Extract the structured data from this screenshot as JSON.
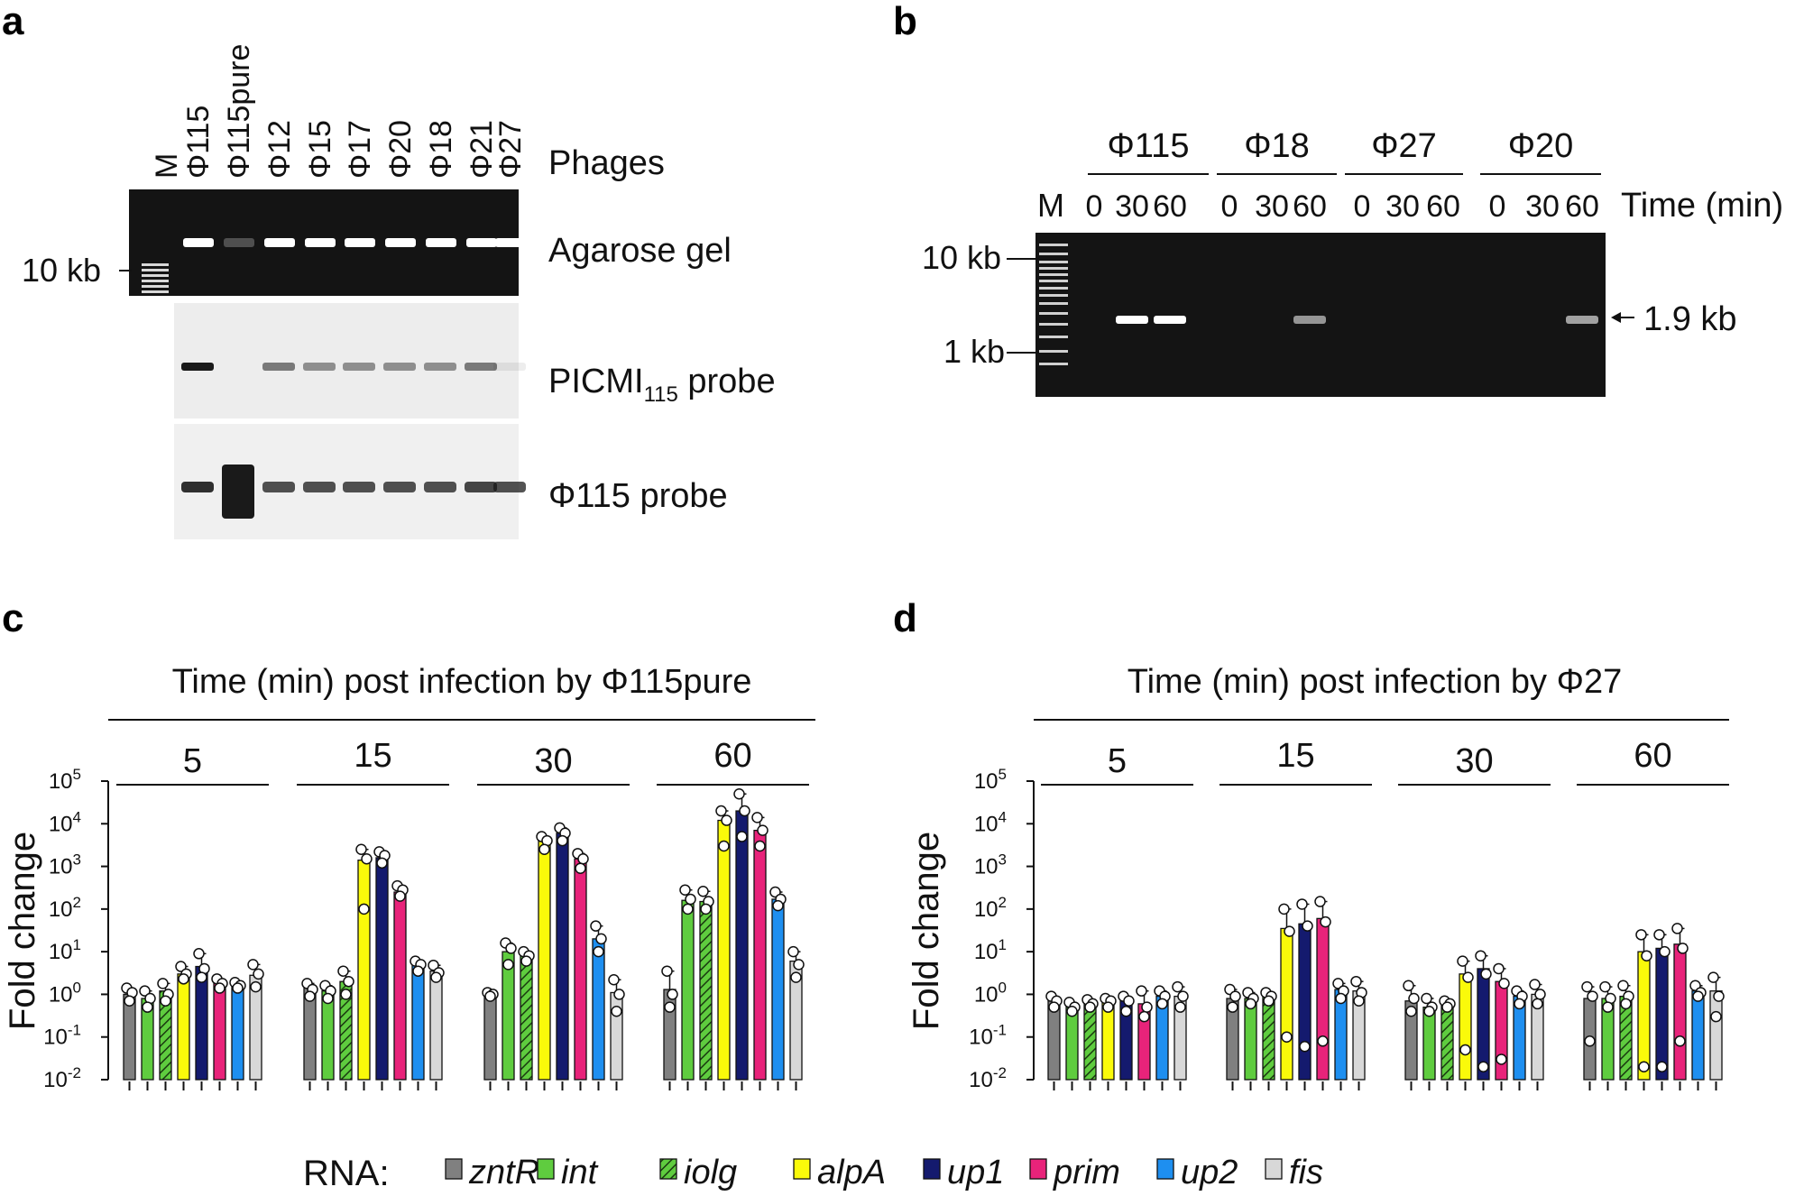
{
  "panels": {
    "a": "a",
    "b": "b",
    "c": "c",
    "d": "d"
  },
  "panel_a": {
    "marker": "M",
    "lanes": [
      "Φ115",
      "Φ115pure",
      "Φ12",
      "Φ15",
      "Φ17",
      "Φ20",
      "Φ18",
      "Φ21",
      "Φ27"
    ],
    "phages_label": "Phages",
    "size_label": "10 kb",
    "rows": [
      {
        "label": "Agarose gel",
        "sub": "",
        "suffix": ""
      },
      {
        "label": "PICMI",
        "sub": "115",
        "suffix": " probe"
      },
      {
        "label": "Φ115 probe",
        "sub": "",
        "suffix": ""
      }
    ],
    "agarose_bands": [
      1,
      0.25,
      1,
      1,
      1,
      1,
      1,
      1,
      1
    ],
    "picmi_bands": [
      1,
      0,
      0.55,
      0.45,
      0.45,
      0.45,
      0.45,
      0.55,
      0.08
    ],
    "phi115_bands": [
      0.9,
      1,
      0.75,
      0.75,
      0.75,
      0.75,
      0.75,
      0.8,
      0.75
    ]
  },
  "panel_b": {
    "marker": "M",
    "groups": [
      "Φ115",
      "Φ18",
      "Φ27",
      "Φ20"
    ],
    "times": [
      "0",
      "30",
      "60"
    ],
    "time_label": "Time (min)",
    "size_labels": [
      "10 kb",
      "1 kb"
    ],
    "arrow_label": "1.9 kb",
    "bands": [
      [
        0,
        1,
        1
      ],
      [
        0,
        0,
        0.55
      ],
      [
        0,
        0,
        0
      ],
      [
        0,
        0,
        0.6
      ]
    ]
  },
  "legend": {
    "title": "RNA:",
    "items": [
      {
        "name": "zntR",
        "color": "#808080",
        "hatch": false
      },
      {
        "name": "int",
        "color": "#5fcc3f",
        "hatch": false
      },
      {
        "name": "iolg",
        "color": "#5fcc3f",
        "hatch": true
      },
      {
        "name": "alpA",
        "color": "#fafa0a",
        "hatch": false
      },
      {
        "name": "up1",
        "color": "#141a6e",
        "hatch": false
      },
      {
        "name": "prim",
        "color": "#e8237a",
        "hatch": false
      },
      {
        "name": "up2",
        "color": "#1e8ff0",
        "hatch": false
      },
      {
        "name": "fis",
        "color": "#d8d8d8",
        "hatch": false
      }
    ]
  },
  "chart_data": [
    {
      "type": "bar",
      "title": "Time (min) post infection by Φ115pure",
      "ylabel": "Fold change",
      "yscale": "log",
      "ylim": [
        0.01,
        100000
      ],
      "yticks": [
        "10-2",
        "10-1",
        "100",
        "101",
        "102",
        "103",
        "104",
        "105"
      ],
      "groups": [
        "5",
        "15",
        "30",
        "60"
      ],
      "series": [
        {
          "name": "zntR",
          "values": [
            1.0,
            1.4,
            1.0,
            1.3
          ],
          "points": [
            [
              1.4,
              1.1,
              0.7
            ],
            [
              1.8,
              1.3,
              0.9
            ],
            [
              1.1,
              1.0,
              0.9
            ],
            [
              3.5,
              1.0,
              0.5
            ]
          ]
        },
        {
          "name": "int",
          "values": [
            0.8,
            1.2,
            10,
            160
          ],
          "points": [
            [
              1.2,
              0.8,
              0.5
            ],
            [
              1.6,
              1.2,
              0.8
            ],
            [
              16,
              12,
              5
            ],
            [
              280,
              170,
              100
            ]
          ]
        },
        {
          "name": "iolg",
          "values": [
            1.2,
            2.0,
            8,
            150
          ],
          "points": [
            [
              1.8,
              1.0,
              0.7
            ],
            [
              3.5,
              2.0,
              1.0
            ],
            [
              10,
              8,
              6
            ],
            [
              260,
              150,
              100
            ]
          ]
        },
        {
          "name": "alpA",
          "values": [
            3.0,
            1400,
            4000,
            12000
          ],
          "points": [
            [
              4.5,
              3.0,
              2.3
            ],
            [
              2500,
              1500,
              100
            ],
            [
              5000,
              4000,
              2500
            ],
            [
              20000,
              12000,
              3000
            ]
          ]
        },
        {
          "name": "up1",
          "values": [
            4.5,
            1600,
            6000,
            20000
          ],
          "points": [
            [
              9,
              4.0,
              2.5
            ],
            [
              2200,
              1800,
              1200
            ],
            [
              8000,
              6000,
              4000
            ],
            [
              50000,
              20000,
              5000
            ]
          ]
        },
        {
          "name": "prim",
          "values": [
            1.8,
            250,
            1500,
            7000
          ],
          "points": [
            [
              2.3,
              1.8,
              1.4
            ],
            [
              350,
              280,
              200
            ],
            [
              2000,
              1500,
              900
            ],
            [
              14000,
              7000,
              3000
            ]
          ]
        },
        {
          "name": "up2",
          "values": [
            1.6,
            5.0,
            20,
            170
          ],
          "points": [
            [
              1.9,
              1.6,
              1.4
            ],
            [
              6,
              5,
              3.5
            ],
            [
              40,
              20,
              10
            ],
            [
              250,
              170,
              120
            ]
          ]
        },
        {
          "name": "fis",
          "values": [
            2.8,
            3.5,
            1.1,
            6
          ],
          "points": [
            [
              5,
              3.0,
              1.5
            ],
            [
              4.8,
              3.2,
              2.5
            ],
            [
              2.2,
              1.0,
              0.4
            ],
            [
              10,
              5,
              2.5
            ]
          ]
        }
      ]
    },
    {
      "type": "bar",
      "title": "Time (min) post infection by Φ27",
      "ylabel": "Fold change",
      "yscale": "log",
      "ylim": [
        0.01,
        100000
      ],
      "yticks": [
        "10-2",
        "10-1",
        "100",
        "101",
        "102",
        "103",
        "104",
        "105"
      ],
      "groups": [
        "5",
        "15",
        "30",
        "60"
      ],
      "series": [
        {
          "name": "zntR",
          "values": [
            0.7,
            0.8,
            0.7,
            0.8
          ],
          "points": [
            [
              0.9,
              0.7,
              0.5
            ],
            [
              1.3,
              0.9,
              0.5
            ],
            [
              1.6,
              0.8,
              0.4
            ],
            [
              1.5,
              0.9,
              0.08
            ]
          ]
        },
        {
          "name": "int",
          "values": [
            0.5,
            0.8,
            0.5,
            0.8
          ],
          "points": [
            [
              0.65,
              0.5,
              0.4
            ],
            [
              1.1,
              0.8,
              0.6
            ],
            [
              0.8,
              0.5,
              0.4
            ],
            [
              1.5,
              0.8,
              0.5
            ]
          ]
        },
        {
          "name": "iolg",
          "values": [
            0.6,
            0.9,
            0.6,
            0.9
          ],
          "points": [
            [
              0.75,
              0.6,
              0.5
            ],
            [
              1.1,
              0.9,
              0.7
            ],
            [
              0.7,
              0.6,
              0.5
            ],
            [
              1.6,
              0.9,
              0.6
            ]
          ]
        },
        {
          "name": "alpA",
          "values": [
            0.65,
            35,
            3,
            10
          ],
          "points": [
            [
              0.8,
              0.7,
              0.5
            ],
            [
              100,
              30,
              0.1
            ],
            [
              6,
              2.5,
              0.05
            ],
            [
              25,
              8,
              0.02
            ]
          ]
        },
        {
          "name": "up1",
          "values": [
            0.7,
            45,
            4,
            12
          ],
          "points": [
            [
              0.9,
              0.7,
              0.4
            ],
            [
              130,
              40,
              0.06
            ],
            [
              8,
              3,
              0.02
            ],
            [
              25,
              10,
              0.02
            ]
          ]
        },
        {
          "name": "prim",
          "values": [
            0.6,
            60,
            2,
            15
          ],
          "points": [
            [
              1.2,
              0.5,
              0.3
            ],
            [
              150,
              50,
              0.08
            ],
            [
              4,
              1.8,
              0.03
            ],
            [
              35,
              12,
              0.08
            ]
          ]
        },
        {
          "name": "up2",
          "values": [
            0.9,
            1.3,
            0.9,
            1.2
          ],
          "points": [
            [
              1.2,
              0.9,
              0.6
            ],
            [
              1.8,
              1.2,
              0.8
            ],
            [
              1.2,
              0.9,
              0.6
            ],
            [
              1.6,
              1.1,
              0.9
            ]
          ]
        },
        {
          "name": "fis",
          "values": [
            0.9,
            1.2,
            1.0,
            1.2
          ],
          "points": [
            [
              1.5,
              0.9,
              0.5
            ],
            [
              2.0,
              1.1,
              0.7
            ],
            [
              1.7,
              1.0,
              0.6
            ],
            [
              2.5,
              0.9,
              0.3
            ]
          ]
        }
      ]
    }
  ]
}
